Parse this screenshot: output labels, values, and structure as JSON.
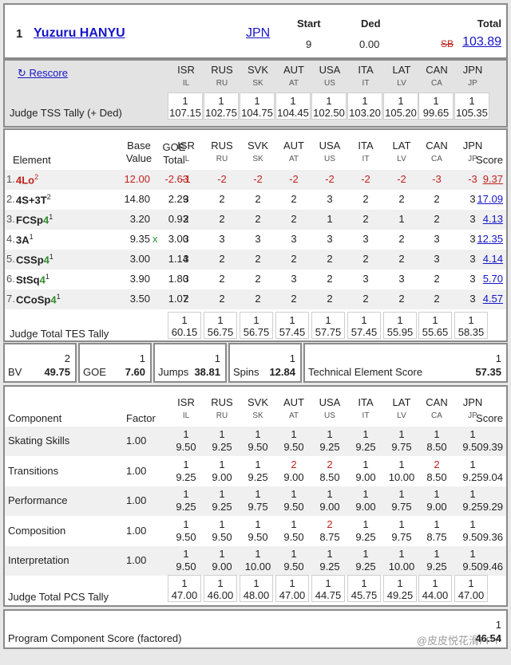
{
  "skater": {
    "rank": "1",
    "name": "Yuzuru HANYU",
    "nation": "JPN"
  },
  "header": {
    "start_label": "Start",
    "start_value": "9",
    "ded_label": "Ded",
    "ded_value": "0.00",
    "total_label": "Total",
    "sb": "SB",
    "total_value": "103.89"
  },
  "rescore_label": "Rescore",
  "judges": [
    {
      "code": "ISR",
      "sub": "IL"
    },
    {
      "code": "RUS",
      "sub": "RU"
    },
    {
      "code": "SVK",
      "sub": "SK"
    },
    {
      "code": "AUT",
      "sub": "AT"
    },
    {
      "code": "USA",
      "sub": "US"
    },
    {
      "code": "ITA",
      "sub": "IT"
    },
    {
      "code": "LAT",
      "sub": "LV"
    },
    {
      "code": "CAN",
      "sub": "CA"
    },
    {
      "code": "JPN",
      "sub": "JP"
    }
  ],
  "tss_tally": {
    "label": "Judge TSS Tally (+ Ded)",
    "rank": "1",
    "values": [
      "107.15",
      "102.75",
      "104.75",
      "104.45",
      "102.50",
      "103.20",
      "105.20",
      "99.65",
      "105.35"
    ]
  },
  "elements_table": {
    "headers": {
      "element": "Element",
      "base_value_1": "Base",
      "base_value_2": "Value",
      "goe_1": "GOE",
      "goe_2": "Total",
      "score": "Score"
    },
    "rows": [
      {
        "num": "1.",
        "name": "4Lo",
        "level": "",
        "sup": "2",
        "bv": "12.00",
        "bonus": "",
        "goe": "-2.63",
        "scores": [
          "-1",
          "-2",
          "-2",
          "-2",
          "-2",
          "-2",
          "-2",
          "-3",
          "-3"
        ],
        "total": "9.37",
        "negative": true
      },
      {
        "num": "2.",
        "name": "4S+3T",
        "level": "",
        "sup": "2",
        "bv": "14.80",
        "bonus": "",
        "goe": "2.29",
        "scores": [
          "3",
          "2",
          "2",
          "2",
          "3",
          "2",
          "2",
          "2",
          "3"
        ],
        "total": "17.09",
        "negative": false
      },
      {
        "num": "3.",
        "name": "FCSp",
        "level": "4",
        "sup": "1",
        "bv": "3.20",
        "bonus": "",
        "goe": "0.93",
        "scores": [
          "2",
          "2",
          "2",
          "2",
          "1",
          "2",
          "1",
          "2",
          "3"
        ],
        "total": "4.13",
        "negative": false
      },
      {
        "num": "4.",
        "name": "3A",
        "level": "",
        "sup": "1",
        "bv": "9.35",
        "bonus": "x",
        "goe": "3.00",
        "scores": [
          "3",
          "3",
          "3",
          "3",
          "3",
          "3",
          "2",
          "3",
          "3"
        ],
        "total": "12.35",
        "negative": false
      },
      {
        "num": "5.",
        "name": "CSSp",
        "level": "4",
        "sup": "1",
        "bv": "3.00",
        "bonus": "",
        "goe": "1.14",
        "scores": [
          "3",
          "2",
          "2",
          "2",
          "2",
          "2",
          "2",
          "3",
          "3"
        ],
        "total": "4.14",
        "negative": false
      },
      {
        "num": "6.",
        "name": "StSq",
        "level": "4",
        "sup": "1",
        "bv": "3.90",
        "bonus": "",
        "goe": "1.80",
        "scores": [
          "3",
          "2",
          "2",
          "3",
          "2",
          "3",
          "3",
          "2",
          "3"
        ],
        "total": "5.70",
        "negative": false
      },
      {
        "num": "7.",
        "name": "CCoSp",
        "level": "4",
        "sup": "1",
        "bv": "3.50",
        "bonus": "",
        "goe": "1.07",
        "scores": [
          "2",
          "2",
          "2",
          "2",
          "2",
          "2",
          "2",
          "2",
          "3"
        ],
        "total": "4.57",
        "negative": false
      }
    ],
    "tes_tally": {
      "label": "Judge Total TES Tally",
      "rank": "1",
      "values": [
        "60.15",
        "56.75",
        "56.75",
        "57.45",
        "57.75",
        "57.45",
        "55.95",
        "55.65",
        "58.35"
      ]
    }
  },
  "summary": {
    "bv": {
      "rank": "2",
      "label": "BV",
      "value": "49.75"
    },
    "goe": {
      "rank": "1",
      "label": "GOE",
      "value": "7.60"
    },
    "jumps": {
      "rank": "1",
      "label": "Jumps",
      "value": "38.81"
    },
    "spins": {
      "rank": "1",
      "label": "Spins",
      "value": "12.84"
    },
    "tes": {
      "rank": "1",
      "label": "Technical Element Score",
      "value": "57.35"
    }
  },
  "pcs_table": {
    "headers": {
      "component": "Component",
      "factor": "Factor",
      "score": "Score"
    },
    "rows": [
      {
        "name": "Skating Skills",
        "factor": "1.00",
        "ranks": [
          "1",
          "1",
          "1",
          "1",
          "1",
          "1",
          "1",
          "1",
          "1"
        ],
        "red": [],
        "values": [
          "9.50",
          "9.25",
          "9.50",
          "9.50",
          "9.25",
          "9.25",
          "9.75",
          "8.50",
          "9.50"
        ],
        "score": "9.39"
      },
      {
        "name": "Transitions",
        "factor": "1.00",
        "ranks": [
          "1",
          "1",
          "1",
          "2",
          "2",
          "1",
          "1",
          "2",
          "1"
        ],
        "red": [
          3,
          4,
          7
        ],
        "values": [
          "9.25",
          "9.00",
          "9.25",
          "9.00",
          "8.50",
          "9.00",
          "10.00",
          "8.50",
          "9.25"
        ],
        "score": "9.04"
      },
      {
        "name": "Performance",
        "factor": "1.00",
        "ranks": [
          "1",
          "1",
          "1",
          "1",
          "1",
          "1",
          "1",
          "1",
          "1"
        ],
        "red": [],
        "values": [
          "9.25",
          "9.25",
          "9.75",
          "9.50",
          "9.00",
          "9.00",
          "9.75",
          "9.00",
          "9.25"
        ],
        "score": "9.29"
      },
      {
        "name": "Composition",
        "factor": "1.00",
        "ranks": [
          "1",
          "1",
          "1",
          "1",
          "2",
          "1",
          "1",
          "1",
          "1"
        ],
        "red": [
          4
        ],
        "values": [
          "9.50",
          "9.50",
          "9.50",
          "9.50",
          "8.75",
          "9.25",
          "9.75",
          "8.75",
          "9.50"
        ],
        "score": "9.36"
      },
      {
        "name": "Interpretation",
        "factor": "1.00",
        "ranks": [
          "1",
          "1",
          "1",
          "1",
          "1",
          "1",
          "1",
          "1",
          "1"
        ],
        "red": [],
        "values": [
          "9.50",
          "9.00",
          "10.00",
          "9.50",
          "9.25",
          "9.25",
          "10.00",
          "9.25",
          "9.50"
        ],
        "score": "9.46"
      }
    ],
    "pcs_tally": {
      "label": "Judge Total PCS Tally",
      "rank": "1",
      "values": [
        "47.00",
        "46.00",
        "48.00",
        "47.00",
        "44.75",
        "45.75",
        "49.25",
        "44.00",
        "47.00"
      ]
    }
  },
  "final": {
    "label": "Program Component Score (factored)",
    "rank": "1",
    "value": "46.54"
  },
  "watermark": "@皮皮悦花滑PPY",
  "colors": {
    "link": "#1515c8",
    "negative": "#c0221c",
    "level": "#2f8c2f"
  }
}
